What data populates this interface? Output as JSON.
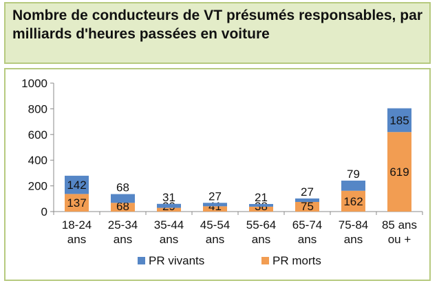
{
  "title": "Nombre de conducteurs de VT présumés responsables, par milliards d'heures passées en voiture",
  "chart_data": {
    "type": "bar",
    "stacked": true,
    "categories": [
      [
        "18-24",
        "ans"
      ],
      [
        "25-34",
        "ans"
      ],
      [
        "35-44",
        "ans"
      ],
      [
        "45-54",
        "ans"
      ],
      [
        "55-64",
        "ans"
      ],
      [
        "65-74",
        "ans"
      ],
      [
        "75-84",
        "ans"
      ],
      [
        "85 ans",
        "ou +"
      ]
    ],
    "series": [
      {
        "name": "PR morts",
        "color": "#f29d52",
        "values": [
          137,
          68,
          29,
          41,
          38,
          75,
          162,
          619
        ]
      },
      {
        "name": "PR vivants",
        "color": "#5586c6",
        "values": [
          142,
          68,
          31,
          27,
          21,
          27,
          79,
          185
        ]
      }
    ],
    "ylim": [
      0,
      1000
    ],
    "yticks": [
      0,
      200,
      400,
      600,
      800,
      1000
    ],
    "grid": false,
    "legend_position": "bottom",
    "legend_order": [
      "PR vivants",
      "PR morts"
    ]
  }
}
